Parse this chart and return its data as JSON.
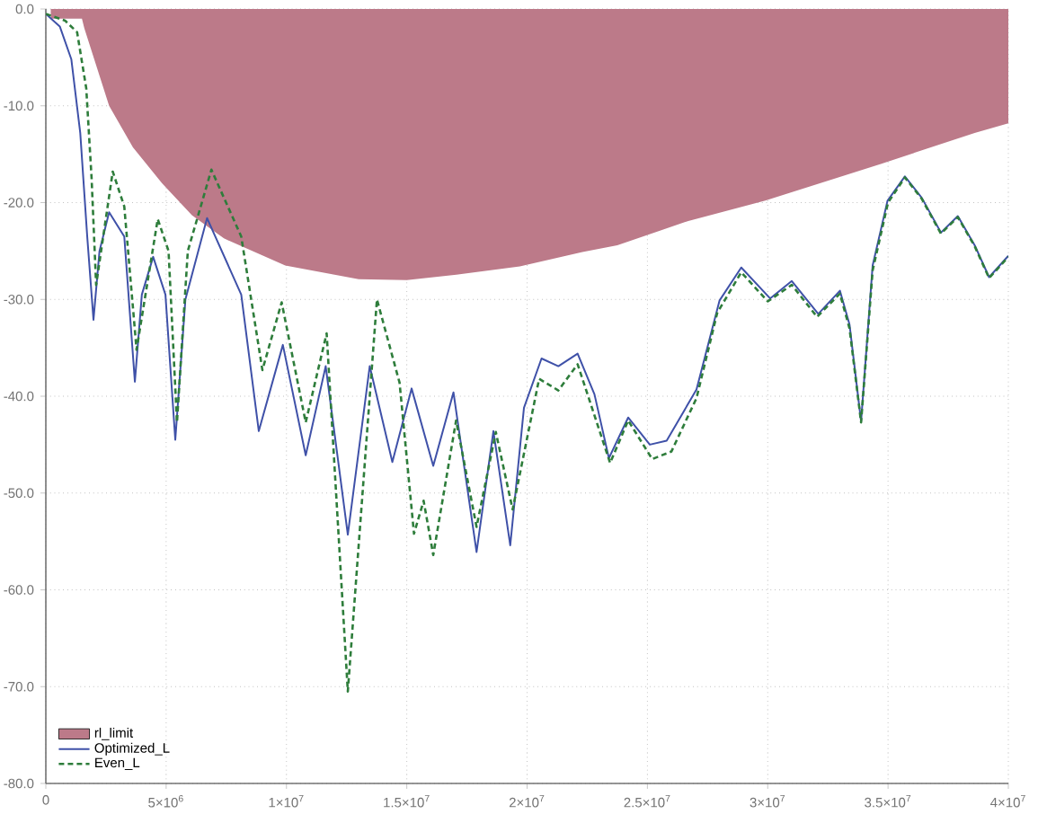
{
  "chart_data": {
    "type": "line",
    "xlim": [
      0,
      40000000
    ],
    "ylim": [
      -80,
      0
    ],
    "xticks": [
      0,
      {
        "value": 5000000,
        "label": "5×10$^{6}$"
      },
      {
        "value": 10000000,
        "label": "1×10$^{7}$"
      },
      {
        "value": 15000000,
        "label": "1.5×10$^{7}$"
      },
      {
        "value": 20000000,
        "label": "2×10$^{7}$"
      },
      {
        "value": 25000000,
        "label": "2.5×10$^{7}$"
      },
      {
        "value": 30000000,
        "label": "3×10$^{7}$"
      },
      {
        "value": 35000000,
        "label": "3.5×10$^{7}$"
      },
      {
        "value": 40000000,
        "label": "4×10$^{7}$"
      }
    ],
    "yticks": [
      {
        "value": 0,
        "label": "0.0"
      },
      {
        "value": -10,
        "label": "-10.0"
      },
      {
        "value": -20,
        "label": "-20.0"
      },
      {
        "value": -30,
        "label": "-30.0"
      },
      {
        "value": -40,
        "label": "-40.0"
      },
      {
        "value": -50,
        "label": "-50.0"
      },
      {
        "value": -60,
        "label": "-60.0"
      },
      {
        "value": -70,
        "label": "-70.0"
      },
      {
        "value": -80,
        "label": "-80.0"
      }
    ],
    "grid": true,
    "legend": "bottom left",
    "marker": "none",
    "series": [
      {
        "name": "rl_limit",
        "type": "area",
        "color": "#bc7a89",
        "x": [
          200000,
          1500000,
          1600000,
          2630000,
          3620000,
          4830000,
          6070000,
          7400000,
          9950000,
          13000000,
          15000000,
          17200000,
          19700000,
          22300000,
          23750000,
          26700000,
          29900000,
          34700000,
          38600000,
          40000000
        ],
        "values": [
          -1,
          -1,
          -2,
          -10,
          -14.3,
          -18,
          -21.3,
          -23.7,
          -26.5,
          -27.9,
          -28,
          -27.4,
          -26.6,
          -25.1,
          -24.4,
          -21.9,
          -19.8,
          -16,
          -12.8,
          -11.8
        ]
      },
      {
        "name": "Optimized_L",
        "color": "#3f51a8",
        "line_style": "solid",
        "x": [
          0,
          580000,
          1060000,
          1430000,
          1720000,
          1980000,
          2230000,
          2630000,
          3260000,
          3700000,
          3990000,
          4460000,
          4970000,
          5380000,
          5800000,
          6700000,
          8120000,
          8850000,
          9850000,
          10800000,
          11630000,
          12550000,
          13460000,
          14400000,
          15200000,
          16100000,
          16940000,
          17900000,
          18600000,
          19300000,
          19870000,
          20600000,
          21300000,
          22100000,
          22800000,
          23400000,
          24200000,
          25100000,
          25800000,
          27040000,
          28000000,
          28900000,
          30100000,
          31000000,
          32100000,
          33000000,
          33400000,
          33880000,
          34360000,
          34980000,
          35700000,
          36400000,
          37200000,
          37900000,
          38600000,
          39200000,
          40000000
        ],
        "values": [
          -0.5,
          -1.8,
          -5.2,
          -12.8,
          -23.5,
          -32.1,
          -25,
          -21,
          -23.5,
          -38.5,
          -29.5,
          -25.6,
          -29.5,
          -44.5,
          -30,
          -21.6,
          -29.5,
          -43.6,
          -34.7,
          -46.1,
          -36.9,
          -54.3,
          -36.9,
          -46.8,
          -39.2,
          -47.2,
          -39.6,
          -56.1,
          -43.6,
          -55.4,
          -41.2,
          -36.1,
          -36.9,
          -35.6,
          -39.8,
          -46.4,
          -42.2,
          -45,
          -44.6,
          -39.3,
          -30.1,
          -26.7,
          -29.9,
          -28.1,
          -31.5,
          -29.1,
          -32.6,
          -42.6,
          -26.5,
          -19.8,
          -17.3,
          -19.5,
          -23.1,
          -21.4,
          -24.4,
          -27.7,
          -25.5
        ]
      },
      {
        "name": "Even_L",
        "color": "#2e7d3b",
        "line_style": "dashed",
        "x": [
          0,
          800000,
          1300000,
          1680000,
          1900000,
          2090000,
          2780000,
          3260000,
          3770000,
          4650000,
          5100000,
          5450000,
          5900000,
          6880000,
          8120000,
          9000000,
          9800000,
          10800000,
          11670000,
          12550000,
          13760000,
          14700000,
          15300000,
          15700000,
          16100000,
          17050000,
          17900000,
          18700000,
          19400000,
          20500000,
          21300000,
          22100000,
          23450000,
          24200000,
          25200000,
          26000000,
          27040000,
          27900000,
          28900000,
          30000000,
          31000000,
          32050000,
          33000000,
          33400000,
          33880000,
          34360000,
          35000000,
          35700000,
          36400000,
          37200000,
          37900000,
          38600000,
          39200000,
          40000000
        ],
        "values": [
          -0.5,
          -1.2,
          -2.4,
          -8.2,
          -17.4,
          -28.5,
          -16.8,
          -20.4,
          -35.2,
          -21.7,
          -25,
          -42.7,
          -25,
          -16.6,
          -23.5,
          -37.3,
          -30.3,
          -42.7,
          -33.5,
          -70.5,
          -30,
          -38.6,
          -54.2,
          -50.8,
          -56.4,
          -42.5,
          -53.5,
          -43.7,
          -51.7,
          -38.2,
          -39.4,
          -36.7,
          -46.9,
          -42.5,
          -46.5,
          -45.7,
          -40.2,
          -31.4,
          -27.2,
          -30.2,
          -28.5,
          -31.8,
          -29.4,
          -33,
          -42.7,
          -27,
          -20,
          -17.4,
          -19.6,
          -23.2,
          -21.5,
          -24.5,
          -27.8,
          -25.6
        ]
      }
    ]
  }
}
